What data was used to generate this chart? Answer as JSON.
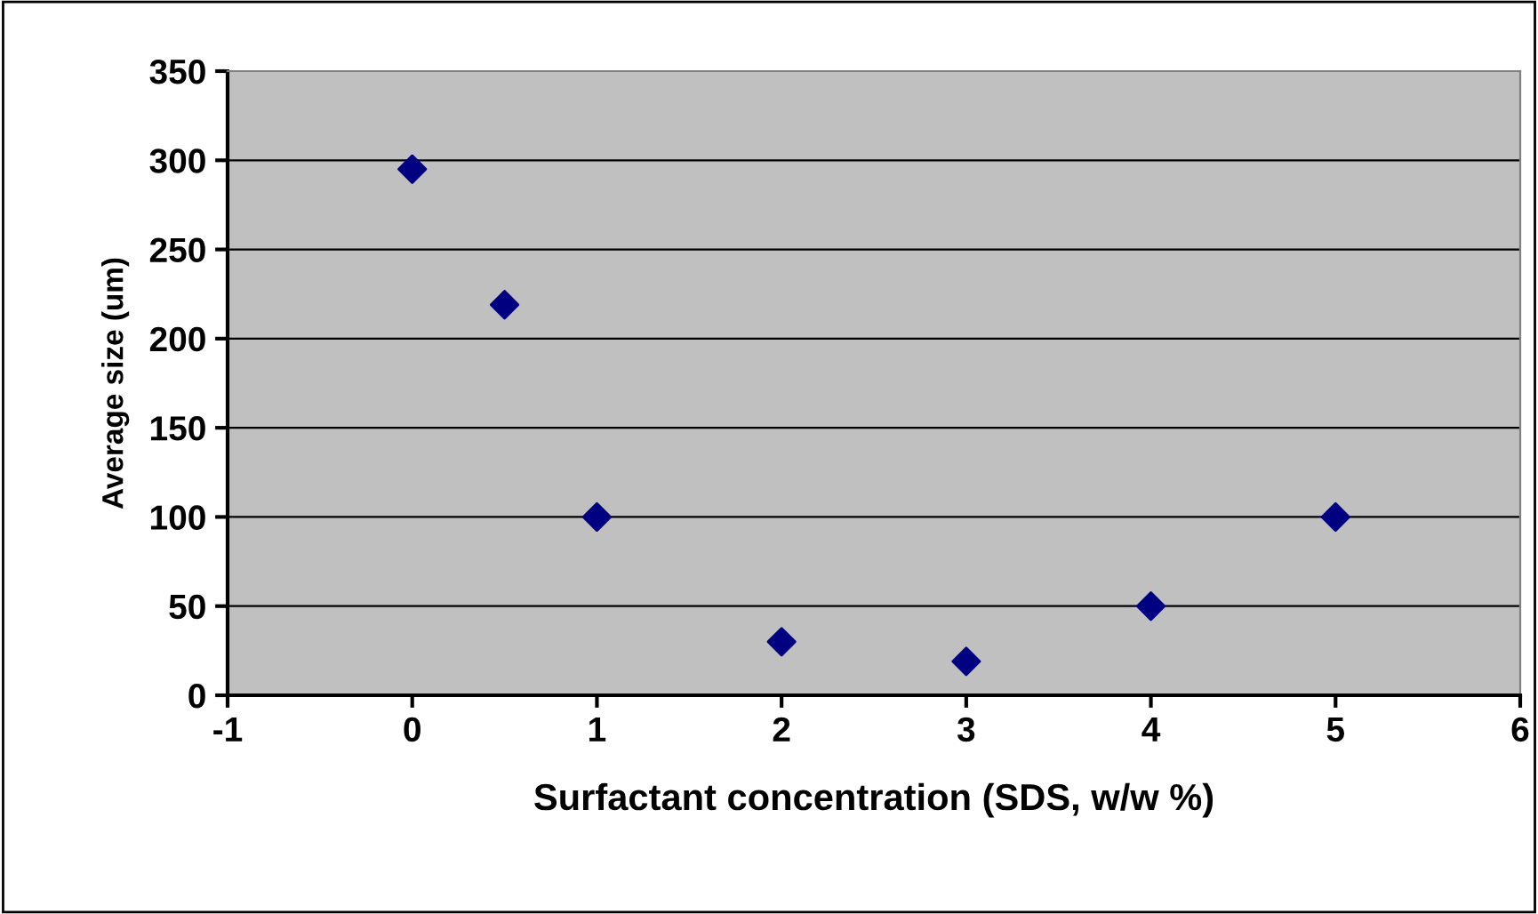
{
  "chart_data": {
    "type": "scatter",
    "xlabel": "Surfactant concentration (SDS, w/w %)",
    "ylabel": "Average size (um)",
    "x": [
      0,
      0.5,
      1,
      2,
      3,
      4,
      5
    ],
    "series": [
      {
        "color": "#000080",
        "values": [
          295,
          219,
          100,
          30,
          19,
          50,
          100
        ]
      }
    ],
    "xlim": [
      -1,
      6
    ],
    "xticks": [
      -1,
      0,
      1,
      2,
      3,
      4,
      5,
      6
    ],
    "ylim": [
      0,
      350
    ],
    "yticks": [
      0,
      50,
      100,
      150,
      200,
      250,
      300,
      350
    ],
    "grid": "y",
    "marker": "diamond",
    "legend": false
  }
}
